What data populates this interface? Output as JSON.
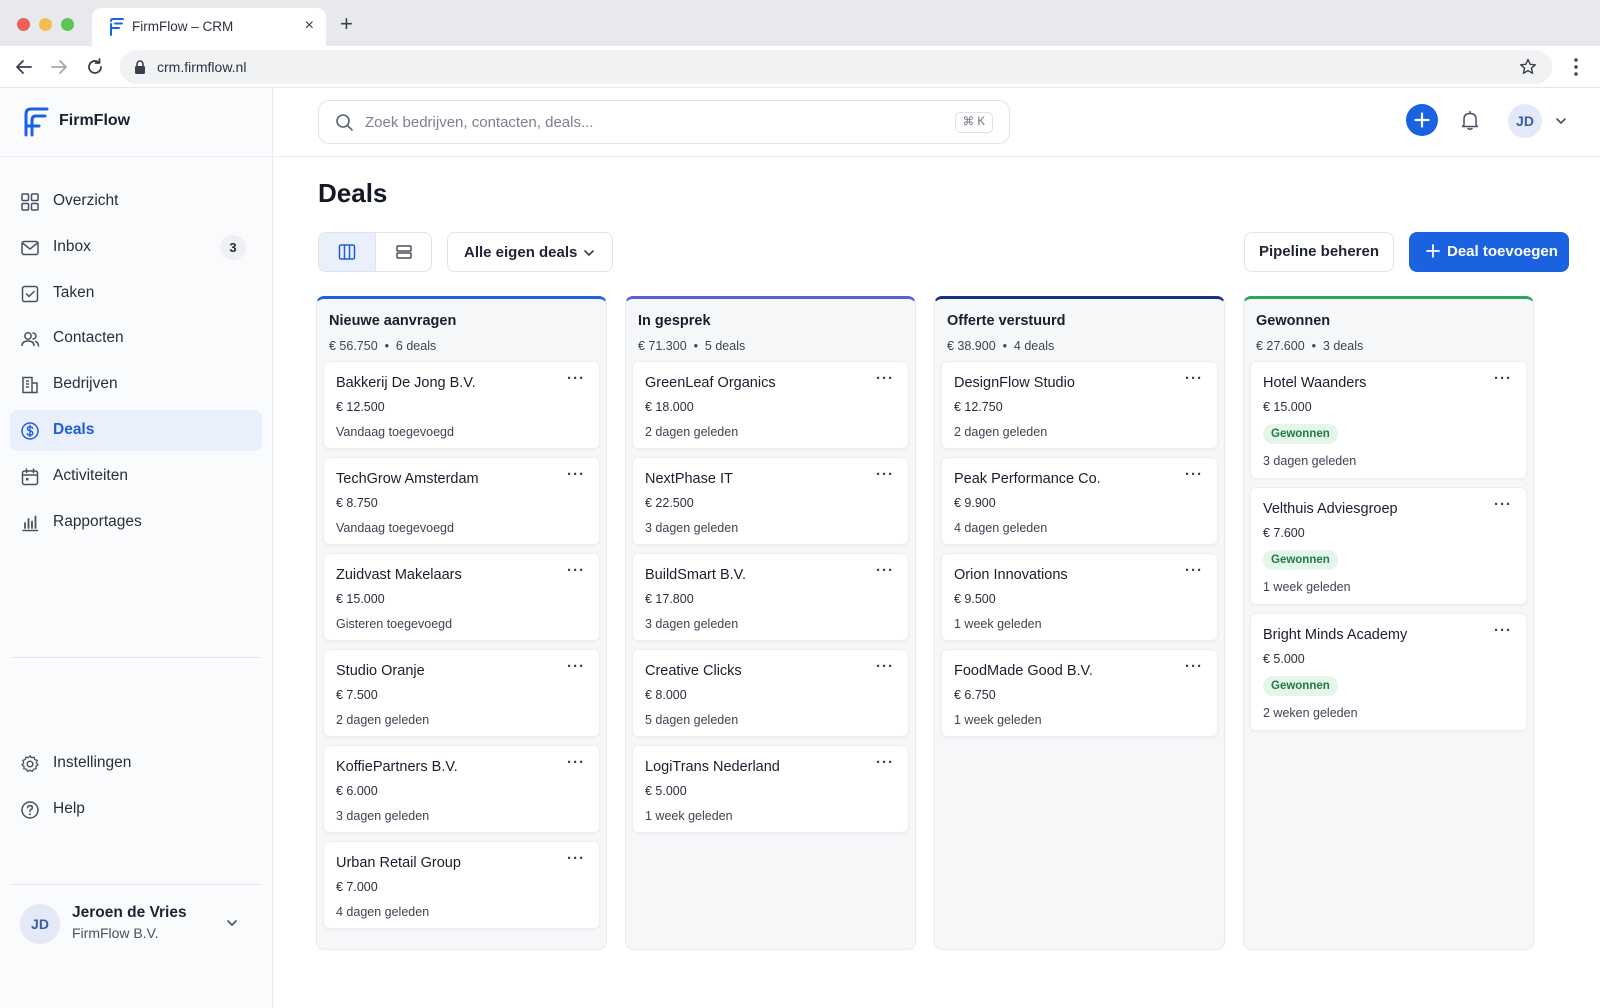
{
  "browser": {
    "tab_title": "FirmFlow – CRM",
    "tab_close": "×",
    "new_tab": "+",
    "url": "crm.firmflow.nl"
  },
  "brand": {
    "name": "FirmFlow",
    "logo_icon": "firmflow-logo-icon",
    "accent": "#1a62e0"
  },
  "sidebar": {
    "items": [
      {
        "label": "Overzicht",
        "icon": "grid-icon"
      },
      {
        "label": "Inbox",
        "icon": "inbox-icon",
        "badge": "3"
      },
      {
        "label": "Taken",
        "icon": "checkbox-icon"
      },
      {
        "label": "Contacten",
        "icon": "users-icon"
      },
      {
        "label": "Bedrijven",
        "icon": "building-icon"
      },
      {
        "label": "Deals",
        "icon": "dollar-icon",
        "active": true
      },
      {
        "label": "Activiteiten",
        "icon": "calendar-icon"
      },
      {
        "label": "Rapportages",
        "icon": "bar-chart-icon"
      }
    ],
    "bottom_items": [
      {
        "label": "Instellingen",
        "icon": "gear-icon"
      },
      {
        "label": "Help",
        "icon": "help-icon"
      }
    ],
    "user": {
      "initials": "JD",
      "name": "Jeroen de Vries",
      "org": "FirmFlow B.V."
    }
  },
  "header": {
    "search_placeholder": "Zoek bedrijven, contacten, deals...",
    "search_shortcut": "⌘ K",
    "avatar_initials": "JD"
  },
  "main": {
    "title": "Deals",
    "filter_label": "Alle eigen deals",
    "pipeline_button": "Pipeline beheren",
    "add_button": "Deal toevoegen"
  },
  "board": {
    "columns": [
      {
        "title": "Nieuwe aanvragen",
        "meta": "€ 56.750  •  6 deals",
        "color": "#1a62e0",
        "cards": [
          {
            "title": "Bakkerij De Jong B.V.",
            "amount": "€ 12.500",
            "date": "Vandaag toegevoegd"
          },
          {
            "title": "TechGrow Amsterdam",
            "amount": "€ 8.750",
            "date": "Vandaag toegevoegd"
          },
          {
            "title": "Zuidvast Makelaars",
            "amount": "€ 15.000",
            "date": "Gisteren toegevoegd"
          },
          {
            "title": "Studio Oranje",
            "amount": "€ 7.500",
            "date": "2 dagen geleden"
          },
          {
            "title": "KoffiePartners B.V.",
            "amount": "€ 6.000",
            "date": "3 dagen geleden"
          },
          {
            "title": "Urban Retail Group",
            "amount": "€ 7.000",
            "date": "4 dagen geleden"
          }
        ]
      },
      {
        "title": "In gesprek",
        "meta": "€ 71.300  •  5 deals",
        "color": "#5a5fd8",
        "cards": [
          {
            "title": "GreenLeaf Organics",
            "amount": "€ 18.000",
            "date": "2 dagen geleden"
          },
          {
            "title": "NextPhase IT",
            "amount": "€ 22.500",
            "date": "3 dagen geleden"
          },
          {
            "title": "BuildSmart B.V.",
            "amount": "€ 17.800",
            "date": "3 dagen geleden"
          },
          {
            "title": "Creative Clicks",
            "amount": "€ 8.000",
            "date": "5 dagen geleden"
          },
          {
            "title": "LogiTrans Nederland",
            "amount": "€ 5.000",
            "date": "1 week geleden"
          }
        ]
      },
      {
        "title": "Offerte verstuurd",
        "meta": "€ 38.900  •  4 deals",
        "color": "#1b2f7a",
        "cards": [
          {
            "title": "DesignFlow Studio",
            "amount": "€ 12.750",
            "date": "2 dagen geleden"
          },
          {
            "title": "Peak Performance Co.",
            "amount": "€ 9.900",
            "date": "4 dagen geleden"
          },
          {
            "title": "Orion Innovations",
            "amount": "€ 9.500",
            "date": "1 week geleden"
          },
          {
            "title": "FoodMade Good B.V.",
            "amount": "€ 6.750",
            "date": "1 week geleden"
          }
        ]
      },
      {
        "title": "Gewonnen",
        "meta": "€ 27.600  •  3 deals",
        "color": "#27a95a",
        "cards": [
          {
            "title": "Hotel Waanders",
            "amount": "€ 15.000",
            "badge": "Gewonnen",
            "date": "3 dagen geleden"
          },
          {
            "title": "Velthuis Adviesgroep",
            "amount": "€ 7.600",
            "badge": "Gewonnen",
            "date": "1 week geleden"
          },
          {
            "title": "Bright Minds Academy",
            "amount": "€ 5.000",
            "badge": "Gewonnen",
            "date": "2 weken geleden"
          }
        ]
      }
    ]
  }
}
